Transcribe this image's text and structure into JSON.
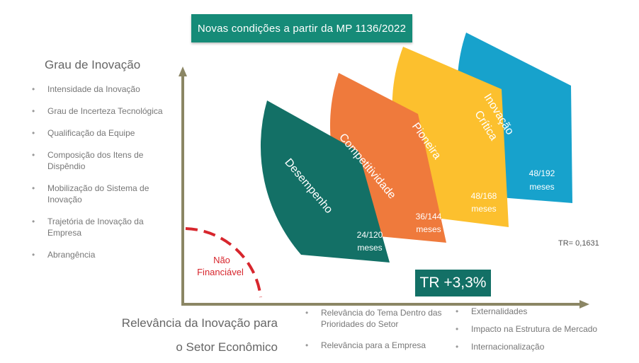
{
  "banner": "Novas condições a partir da  MP 1136/2022",
  "y_axis": {
    "title": "Grau de Inovação",
    "criteria": [
      "Intensidade da Inovação",
      "Grau de Incerteza Tecnológica",
      "Qualificação da Equipe",
      "Composição dos Itens de Dispêndio",
      "Mobilização do Sistema de Inovação",
      "Trajetória de Inovação da Empresa",
      "Abrangência"
    ]
  },
  "x_axis": {
    "title_line1": "Relevância da Inovação para",
    "title_line2": "o Setor Econômico",
    "criteria_col1": [
      "Relevância do Tema Dentro das Prioridades do Setor",
      "Relevância para a Empresa"
    ],
    "criteria_col2": [
      "Externalidades",
      "Impacto na Estrutura de Mercado",
      "Internacionalização"
    ]
  },
  "non_financeable": {
    "line1": "Não",
    "line2": "Financiável",
    "color": "#d7262d"
  },
  "bands": [
    {
      "name": "Desempenho",
      "terms_line1": "24/120",
      "terms_line2": "meses",
      "color": "#137066"
    },
    {
      "name": "Competitividade",
      "terms_line1": "36/144",
      "terms_line2": "meses",
      "color": "#ef7a3c"
    },
    {
      "name": "Pioneira",
      "terms_line1": "48/168",
      "terms_line2": "meses",
      "color": "#fcc02e"
    },
    {
      "name_line1": "Inovação",
      "name_line2": "Crítica",
      "terms_line1": "48/192",
      "terms_line2": "meses",
      "color": "#17a2cc"
    }
  ],
  "tr_badge": "TR +3,3%",
  "tr_value": "TR= 0,1631",
  "colors": {
    "axis": "#8b8664",
    "banner": "#168b78"
  }
}
